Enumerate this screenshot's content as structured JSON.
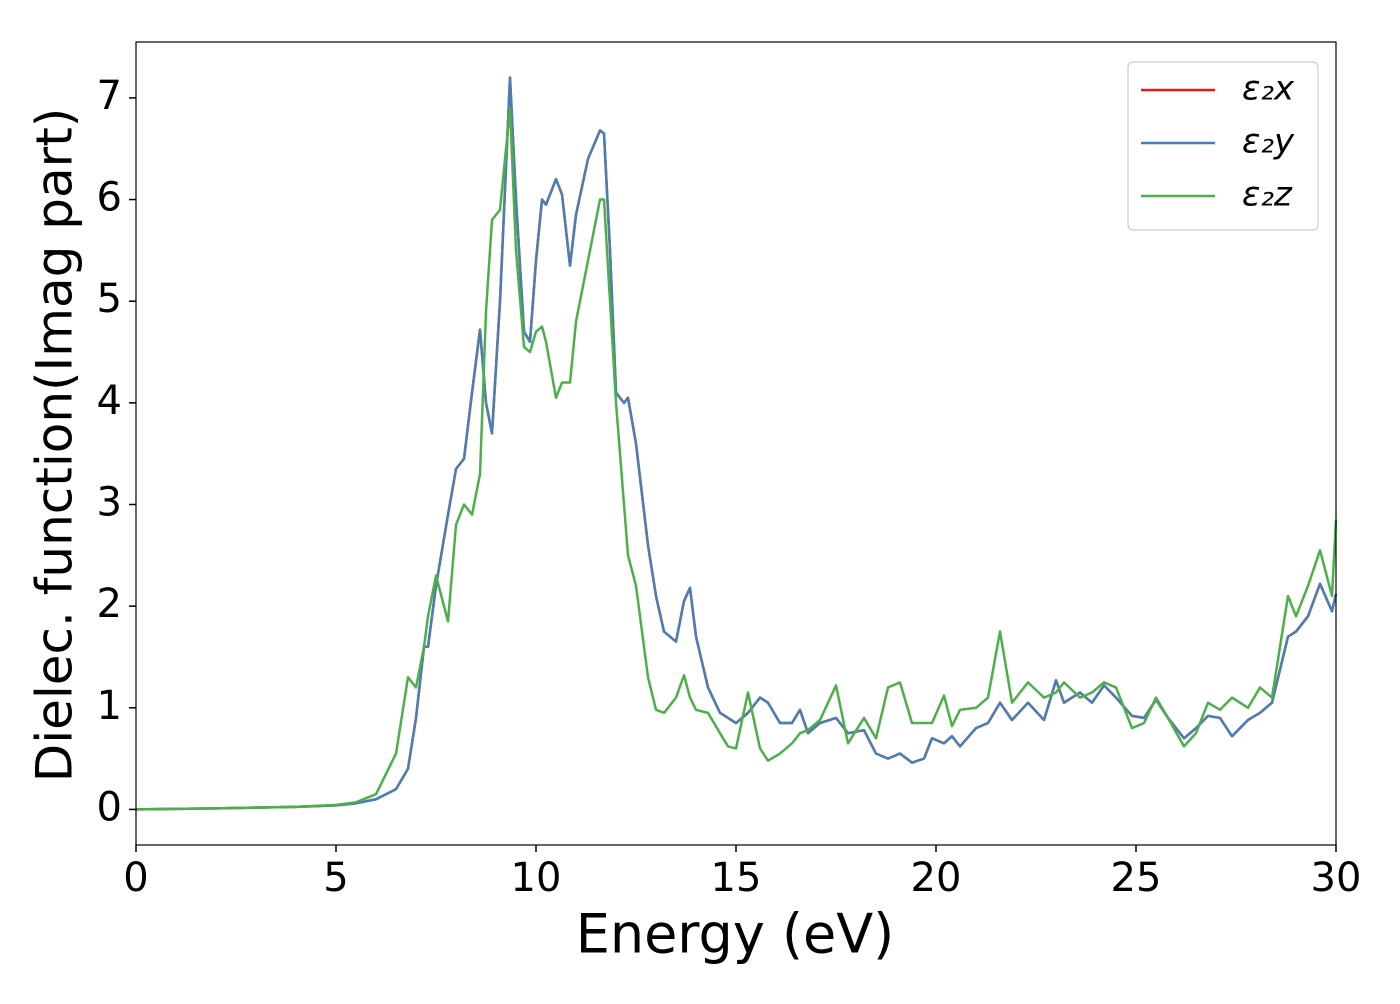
{
  "chart_data": {
    "type": "line",
    "xlabel": "Energy (eV)",
    "ylabel": "Dielec. function(Imag part)",
    "x": [
      0,
      2,
      4,
      5,
      5.5,
      6,
      6.5,
      6.8,
      7.0,
      7.2,
      7.3,
      7.5,
      7.8,
      8.0,
      8.2,
      8.4,
      8.6,
      8.75,
      8.9,
      9.1,
      9.35,
      9.5,
      9.7,
      9.85,
      10.0,
      10.15,
      10.25,
      10.5,
      10.65,
      10.85,
      11.0,
      11.3,
      11.6,
      11.7,
      11.85,
      12.0,
      12.2,
      12.3,
      12.5,
      12.8,
      13.0,
      13.2,
      13.5,
      13.7,
      13.85,
      14.0,
      14.3,
      14.6,
      14.8,
      15.0,
      15.3,
      15.6,
      15.8,
      16.1,
      16.4,
      16.6,
      16.8,
      17.1,
      17.5,
      17.8,
      18.2,
      18.5,
      18.8,
      19.1,
      19.4,
      19.7,
      19.9,
      20.2,
      20.4,
      20.6,
      21.0,
      21.3,
      21.6,
      21.9,
      22.3,
      22.7,
      23.0,
      23.2,
      23.6,
      23.9,
      24.2,
      24.5,
      24.9,
      25.2,
      25.5,
      25.8,
      26.2,
      26.5,
      26.8,
      27.1,
      27.4,
      27.8,
      28.1,
      28.4,
      28.8,
      29.0,
      29.3,
      29.6,
      29.9,
      30
    ],
    "series": [
      {
        "name": "ε₂x",
        "color": "#e41a1c",
        "values": [
          0,
          0.01,
          0.025,
          0.04,
          0.06,
          0.1,
          0.2,
          0.4,
          0.9,
          1.6,
          1.6,
          2.2,
          2.9,
          3.35,
          3.45,
          4.1,
          4.72,
          4.0,
          3.7,
          5.0,
          7.2,
          6.0,
          4.7,
          4.6,
          5.4,
          6.0,
          5.95,
          6.2,
          6.05,
          5.35,
          5.85,
          6.4,
          6.68,
          6.65,
          5.5,
          4.1,
          4.0,
          4.05,
          3.6,
          2.6,
          2.1,
          1.75,
          1.65,
          2.05,
          2.18,
          1.7,
          1.2,
          0.95,
          0.9,
          0.85,
          0.95,
          1.1,
          1.05,
          0.85,
          0.85,
          0.98,
          0.75,
          0.85,
          0.9,
          0.75,
          0.78,
          0.55,
          0.5,
          0.55,
          0.46,
          0.5,
          0.7,
          0.65,
          0.72,
          0.62,
          0.8,
          0.85,
          1.05,
          0.88,
          1.05,
          0.88,
          1.27,
          1.05,
          1.15,
          1.05,
          1.22,
          1.1,
          0.92,
          0.9,
          1.08,
          0.9,
          0.7,
          0.8,
          0.92,
          0.9,
          0.72,
          0.88,
          0.95,
          1.05,
          1.7,
          1.75,
          1.9,
          2.22,
          1.95,
          2.12
        ]
      },
      {
        "name": "ε₂y",
        "color": "#4a7fb5",
        "values": [
          0,
          0.01,
          0.025,
          0.04,
          0.06,
          0.1,
          0.2,
          0.4,
          0.9,
          1.6,
          1.6,
          2.2,
          2.9,
          3.35,
          3.45,
          4.1,
          4.72,
          4.0,
          3.7,
          5.0,
          7.2,
          6.0,
          4.7,
          4.6,
          5.4,
          6.0,
          5.95,
          6.2,
          6.05,
          5.35,
          5.85,
          6.4,
          6.68,
          6.65,
          5.5,
          4.1,
          4.0,
          4.05,
          3.6,
          2.6,
          2.1,
          1.75,
          1.65,
          2.05,
          2.18,
          1.7,
          1.2,
          0.95,
          0.9,
          0.85,
          0.95,
          1.1,
          1.05,
          0.85,
          0.85,
          0.98,
          0.75,
          0.85,
          0.9,
          0.75,
          0.78,
          0.55,
          0.5,
          0.55,
          0.46,
          0.5,
          0.7,
          0.65,
          0.72,
          0.62,
          0.8,
          0.85,
          1.05,
          0.88,
          1.05,
          0.88,
          1.27,
          1.05,
          1.15,
          1.05,
          1.22,
          1.1,
          0.92,
          0.9,
          1.08,
          0.9,
          0.7,
          0.8,
          0.92,
          0.9,
          0.72,
          0.88,
          0.95,
          1.05,
          1.7,
          1.75,
          1.9,
          2.22,
          1.95,
          2.12
        ]
      },
      {
        "name": "ε₂z",
        "color": "#4daf4a",
        "values": [
          0,
          0.01,
          0.025,
          0.045,
          0.07,
          0.15,
          0.55,
          1.3,
          1.2,
          1.6,
          1.9,
          2.3,
          1.85,
          2.8,
          3.0,
          2.9,
          3.3,
          4.9,
          5.8,
          5.9,
          6.9,
          5.5,
          4.55,
          4.5,
          4.7,
          4.75,
          4.6,
          4.05,
          4.2,
          4.2,
          4.8,
          5.4,
          6.0,
          6.0,
          5.0,
          4.0,
          3.0,
          2.5,
          2.2,
          1.3,
          0.98,
          0.95,
          1.1,
          1.32,
          1.1,
          0.98,
          0.95,
          0.75,
          0.62,
          0.6,
          1.15,
          0.6,
          0.48,
          0.55,
          0.65,
          0.75,
          0.78,
          0.88,
          1.22,
          0.65,
          0.9,
          0.7,
          1.2,
          1.25,
          0.85,
          0.85,
          0.85,
          1.12,
          0.82,
          0.98,
          1.0,
          1.1,
          1.75,
          1.05,
          1.25,
          1.1,
          1.15,
          1.25,
          1.1,
          1.15,
          1.25,
          1.2,
          0.8,
          0.85,
          1.1,
          0.9,
          0.62,
          0.75,
          1.05,
          0.98,
          1.1,
          1.0,
          1.2,
          1.1,
          2.1,
          1.9,
          2.2,
          2.55,
          2.1,
          2.85
        ]
      }
    ],
    "xlim": [
      0,
      30
    ],
    "xticks": [
      0,
      5,
      10,
      15,
      20,
      25,
      30
    ],
    "ylim": [
      -0.35,
      7.55
    ],
    "yticks": [
      0,
      1,
      2,
      3,
      4,
      5,
      6,
      7
    ],
    "legend": "upper right"
  }
}
